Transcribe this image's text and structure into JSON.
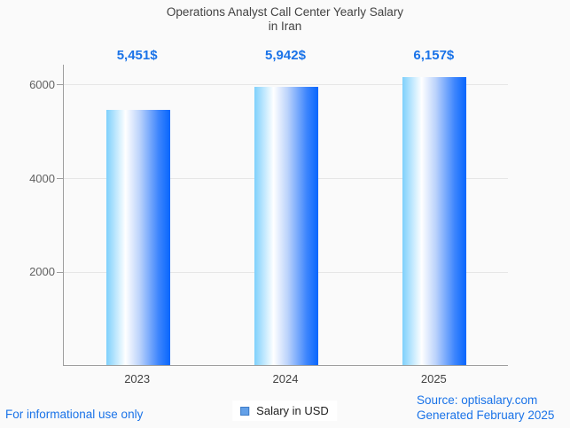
{
  "title": {
    "line1": "Operations Analyst Call Center Yearly Salary",
    "line2": "in Iran"
  },
  "chart_data": {
    "type": "bar",
    "title": "Operations Analyst Call Center Yearly Salary in Iran",
    "categories": [
      "2023",
      "2024",
      "2025"
    ],
    "series": [
      {
        "name": "Salary in USD",
        "values": [
          5451,
          5942,
          6157
        ]
      }
    ],
    "value_labels": [
      "5,451$",
      "5,942$",
      "6,157$"
    ],
    "xlabel": "",
    "ylabel": "",
    "y_ticks": [
      2000,
      4000,
      6000
    ],
    "ylim": [
      0,
      6433
    ],
    "grid": true,
    "legend_position": "bottom"
  },
  "legend": {
    "label": "Salary in USD",
    "swatch_color": "#63a0e8",
    "swatch_border": "#3e7cc7"
  },
  "footer": {
    "disclaimer": "For informational use only",
    "source": "Source: optisalary.com",
    "generated": "Generated February 2025"
  },
  "colors": {
    "accent_blue": "#1a73e8",
    "bar_gradient_left": "#7ed0fc",
    "bar_gradient_mid": "#ffffff",
    "bar_gradient_right": "#0766fd",
    "axis": "#9e9e9e",
    "gridline": "#e6e6e6",
    "title_text": "#424242",
    "tick_text": "#616161",
    "background": "#fafafa",
    "legend_text": "#212121"
  }
}
